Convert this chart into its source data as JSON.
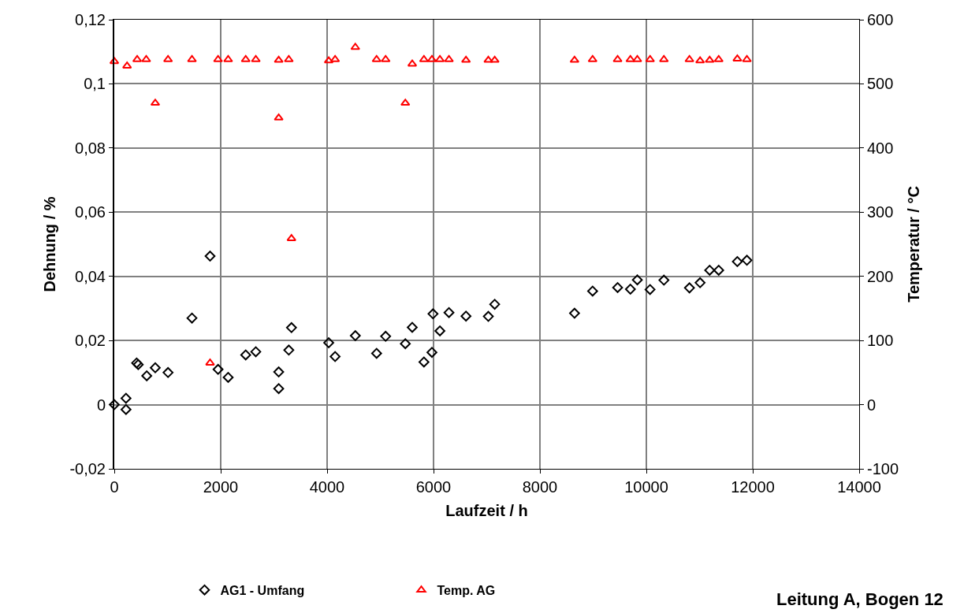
{
  "chart_data": {
    "type": "scatter",
    "xlabel": "Laufzeit / h",
    "ylabel": "Dehnung / %",
    "y2label": "Temperatur / °C",
    "xlim": [
      0,
      14000
    ],
    "xticks": [
      0,
      2000,
      4000,
      6000,
      8000,
      10000,
      12000,
      14000
    ],
    "ylim": [
      -0.02,
      0.12
    ],
    "yticks": [
      {
        "value": -0.02,
        "label": "-0,02"
      },
      0,
      {
        "value": 0.02,
        "label": "0,02"
      },
      {
        "value": 0.04,
        "label": "0,04"
      },
      {
        "value": 0.06,
        "label": "0,06"
      },
      {
        "value": 0.08,
        "label": "0,08"
      },
      {
        "value": 0.1,
        "label": "0,1"
      },
      {
        "value": 0.12,
        "label": "0,12"
      }
    ],
    "y2lim": [
      -100,
      600
    ],
    "y2ticks": [
      -100,
      0,
      100,
      200,
      300,
      400,
      500,
      600
    ],
    "grid": true,
    "legend": "bottom",
    "annotations": [
      "Leitung A, Bogen 12"
    ],
    "series": [
      {
        "name": "AG1 - Umfang",
        "color": "#000000",
        "marker": "diamond",
        "x": [
          0,
          220,
          220,
          420,
          450,
          610,
          770,
          1010,
          1460,
          1800,
          1950,
          2140,
          2470,
          2660,
          3090,
          3090,
          3280,
          3330,
          4030,
          4150,
          4530,
          4930,
          5100,
          5470,
          5600,
          5820,
          5970,
          5990,
          6120,
          6290,
          6610,
          7030,
          7150,
          8650,
          8990,
          9460,
          9700,
          9830,
          10070,
          10330,
          10810,
          11010,
          11190,
          11360,
          11710,
          11890
        ],
        "values": [
          0,
          0.002,
          -0.0015,
          0.013,
          0.0125,
          0.009,
          0.0115,
          0.01,
          0.027,
          0.0463,
          0.011,
          0.0085,
          0.0155,
          0.0165,
          0.0102,
          0.005,
          0.017,
          0.024,
          0.0193,
          0.015,
          0.0215,
          0.016,
          0.0213,
          0.019,
          0.0241,
          0.0133,
          0.0163,
          0.0283,
          0.023,
          0.0287,
          0.0276,
          0.0275,
          0.0313,
          0.0285,
          0.0354,
          0.0365,
          0.036,
          0.0389,
          0.0359,
          0.0388,
          0.0364,
          0.038,
          0.0419,
          0.0419,
          0.0446,
          0.045
        ]
      },
      {
        "name": "Temp. AG",
        "color": "#ff0000",
        "marker": "triangle",
        "axis": "y2",
        "x": [
          0,
          240,
          430,
          600,
          770,
          1010,
          1460,
          1800,
          1950,
          2140,
          2470,
          2660,
          3090,
          3090,
          3280,
          3330,
          4030,
          4150,
          4530,
          4930,
          5100,
          5470,
          5600,
          5820,
          5970,
          6120,
          6290,
          6610,
          7030,
          7150,
          8650,
          8990,
          9460,
          9700,
          9830,
          10070,
          10330,
          10810,
          11010,
          11190,
          11360,
          11710,
          11890
        ],
        "values": [
          535,
          528,
          538,
          538,
          470,
          538,
          538,
          65,
          538,
          538,
          538,
          538,
          537,
          447,
          538,
          259,
          536,
          538,
          557,
          538,
          538,
          470,
          531,
          538,
          538,
          538,
          538,
          537,
          537,
          537,
          537,
          538,
          538,
          538,
          538,
          538,
          538,
          538,
          536,
          537,
          538,
          539,
          538
        ]
      }
    ]
  }
}
